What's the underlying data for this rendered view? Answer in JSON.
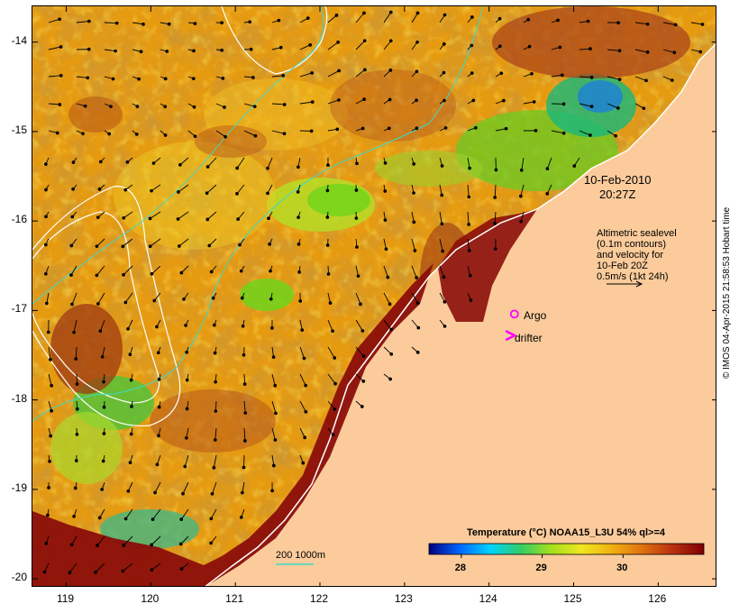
{
  "map": {
    "lon_range": [
      118.6,
      126.7
    ],
    "lat_range": [
      -20.1,
      -13.6
    ],
    "lon_ticks": [
      "119",
      "120",
      "121",
      "122",
      "123",
      "124",
      "125",
      "126"
    ],
    "lat_ticks": [
      "-14",
      "-15",
      "-16",
      "-17",
      "-18",
      "-19",
      "-20"
    ],
    "colors": {
      "land": "#fbcb9b",
      "coast_water": "#8b0e0a",
      "warm": "#e69a10",
      "green": "#6fd41a",
      "contour": "#ffffff",
      "depth_contour": "#3fd9c8"
    }
  },
  "timestamp": {
    "date": "10-Feb-2010",
    "time": "20:27Z"
  },
  "altimetry_note": {
    "lines": [
      "Altimetric sealevel",
      "(0.1m contours)",
      "and velocity for",
      "10-Feb 20Z",
      "0.5m/s (1kt 24h)"
    ]
  },
  "markers": {
    "argo": {
      "label": "Argo",
      "color": "#ff00ff",
      "lon": 124.3,
      "lat": -17.04
    },
    "drifter": {
      "label": "drifter",
      "color": "#ff00ff",
      "lon": 124.25,
      "lat": -17.28
    }
  },
  "legend": {
    "title": "Temperature (°C) NOAA15_L3U 54% ql>=4",
    "ticks": [
      "28",
      "29",
      "30"
    ],
    "range": [
      27.6,
      31.0
    ],
    "colors": [
      "#00007f",
      "#0066ff",
      "#00d4ff",
      "#33cc66",
      "#a4e01c",
      "#f0e620",
      "#f0b010",
      "#e07010",
      "#b83010",
      "#7f0000"
    ]
  },
  "scale_bar": {
    "label": "200  1000m"
  },
  "credit": "© IMOS 04-Apr-2015 21:58:53 Hobart time"
}
